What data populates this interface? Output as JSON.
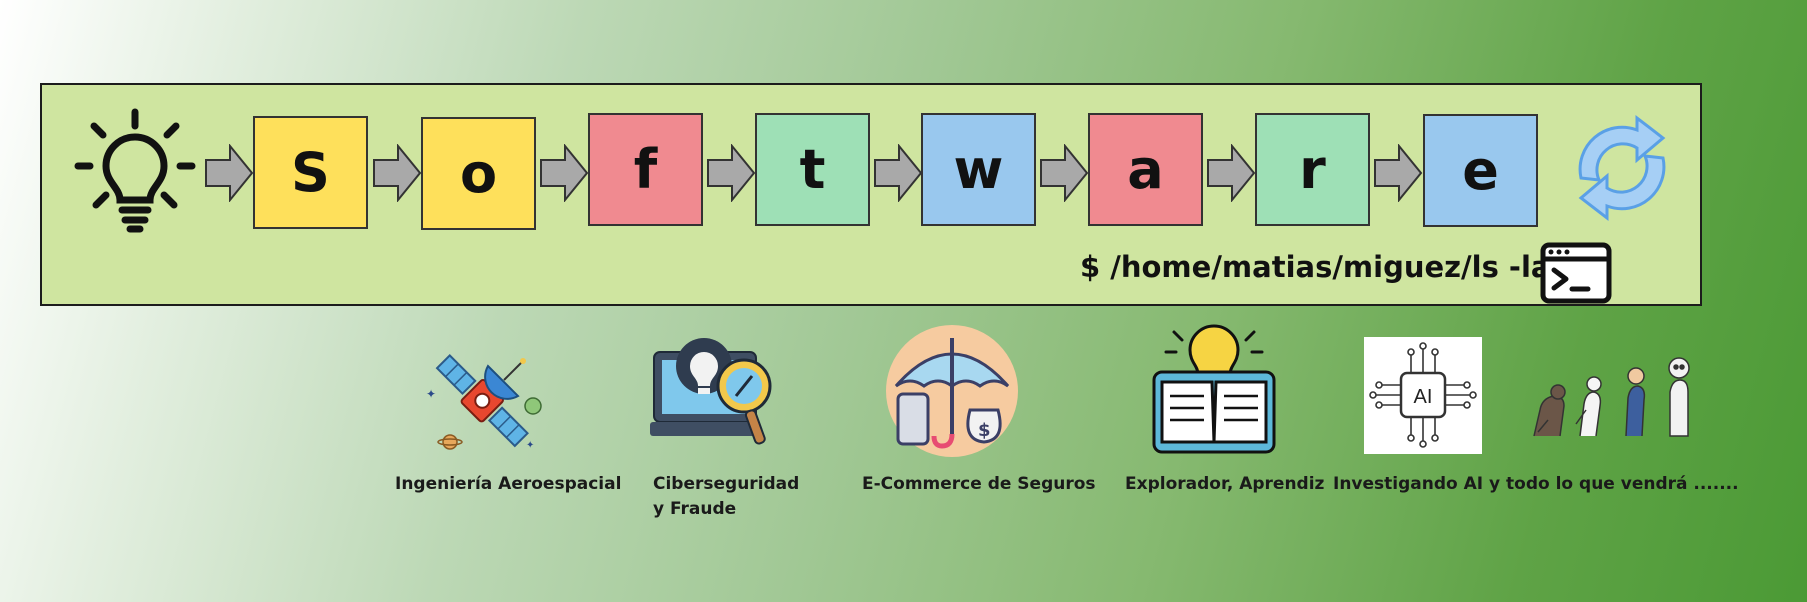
{
  "banner": {
    "letters": [
      "S",
      "o",
      "f",
      "t",
      "w",
      "a",
      "r",
      "e"
    ],
    "command": "$ /home/matias/miguez/ls -la",
    "icons": {
      "start": "lightbulb-icon",
      "end": "refresh-icon",
      "terminal": "terminal-icon",
      "connector": "arrow-right-icon"
    },
    "letter_colors": [
      "#fee05b",
      "#fee05b",
      "#f08a90",
      "#9ee0b6",
      "#99c8ee",
      "#f08a90",
      "#9ee0b6",
      "#99c8ee"
    ]
  },
  "items": [
    {
      "icon": "satellite-icon",
      "caption_line1": "Ingeniería Aeroespacial"
    },
    {
      "icon": "cybersecurity-icon",
      "caption_line1": "Ciberseguridad",
      "caption_line2": "y Fraude"
    },
    {
      "icon": "insurance-icon",
      "caption_line1": "E-Commerce de Seguros"
    },
    {
      "icon": "book-idea-icon",
      "caption_line1": "Explorador, Aprendiz"
    },
    {
      "icon": "ai-chip-icon",
      "caption_line1": "Investigando AI y todo lo que vendrá ......."
    },
    {
      "icon": "evolution-icon"
    }
  ]
}
